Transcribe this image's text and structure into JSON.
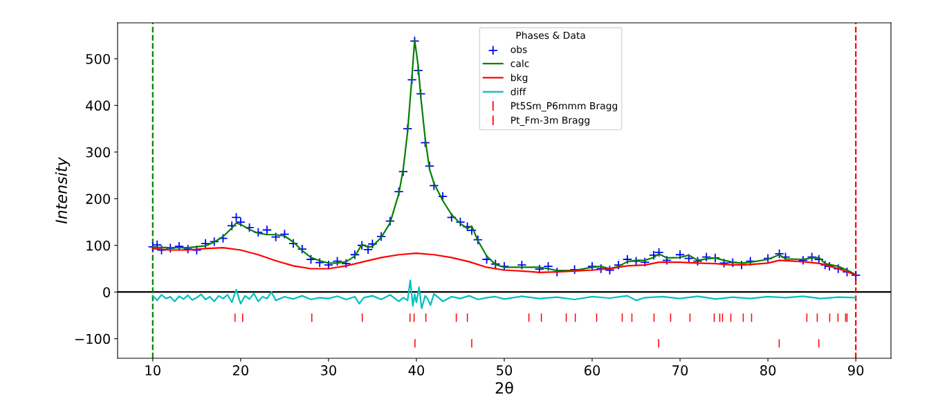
{
  "chart_data": {
    "type": "line",
    "xlabel": "2θ",
    "ylabel": "Intensity",
    "legend_title": "Phases & Data",
    "legend": "top",
    "grid": false,
    "xlim": [
      6,
      94
    ],
    "ylim": [
      -142,
      577
    ],
    "xticks": [
      10,
      20,
      30,
      40,
      50,
      60,
      70,
      80,
      90
    ],
    "yticks": [
      -100,
      0,
      100,
      200,
      300,
      400,
      500
    ],
    "ref_lines": [
      {
        "axis": "y",
        "value": 0,
        "color": "#000000",
        "line_style": "solid"
      },
      {
        "axis": "x",
        "value": 10,
        "color": "#008000",
        "line_style": "dashed"
      },
      {
        "axis": "x",
        "value": 90,
        "color": "#ff0000",
        "line_style": "dashed"
      }
    ],
    "series": [
      {
        "name": "obs",
        "type": "scatter",
        "marker": "cross",
        "color": "#0000ff",
        "x": [
          10,
          10.5,
          11,
          12,
          13,
          14,
          15,
          16,
          17,
          18,
          19,
          19.5,
          20,
          21,
          22,
          23,
          24,
          25,
          26,
          27,
          28,
          29,
          30,
          31,
          32,
          33,
          33.8,
          34.5,
          35,
          36,
          37,
          38,
          38.5,
          39,
          39.5,
          39.8,
          40.2,
          40.5,
          41,
          41.5,
          42,
          43,
          44,
          45,
          45.8,
          46.3,
          47,
          48,
          49,
          50,
          52,
          54,
          55,
          56,
          58,
          60,
          61,
          62,
          63,
          64,
          65,
          66,
          67,
          67.6,
          68.5,
          70,
          71,
          72,
          73,
          74,
          75,
          76,
          77,
          78,
          80,
          81.3,
          82,
          84,
          85,
          85.8,
          86.5,
          87,
          88,
          89,
          90
        ],
        "values": [
          97,
          101,
          90,
          94,
          98,
          92,
          90,
          104,
          108,
          115,
          142,
          160,
          150,
          138,
          128,
          133,
          118,
          124,
          104,
          92,
          70,
          63,
          58,
          66,
          61,
          80,
          100,
          91,
          103,
          119,
          152,
          215,
          258,
          350,
          455,
          538,
          475,
          425,
          320,
          270,
          228,
          205,
          160,
          150,
          140,
          132,
          112,
          70,
          60,
          55,
          58,
          49,
          55,
          43,
          48,
          55,
          50,
          47,
          58,
          70,
          66,
          64,
          79,
          85,
          68,
          80,
          72,
          66,
          75,
          73,
          62,
          63,
          58,
          66,
          72,
          82,
          75,
          68,
          75,
          70,
          58,
          55,
          50,
          43,
          36
        ]
      },
      {
        "name": "calc",
        "color": "#008000",
        "x": [
          10,
          12,
          14,
          16,
          17,
          18,
          19,
          19.5,
          20,
          21,
          22,
          23,
          24,
          25,
          26,
          27,
          28,
          29,
          30,
          31,
          32,
          33,
          33.8,
          34.5,
          35,
          36,
          37,
          38,
          38.5,
          39,
          39.5,
          39.8,
          40.2,
          40.5,
          41,
          41.5,
          42,
          43,
          44,
          45,
          45.8,
          46.3,
          47,
          48,
          49,
          50,
          52,
          54,
          55,
          56,
          58,
          60,
          61,
          62,
          63,
          64,
          65,
          66,
          67,
          67.6,
          68.5,
          70,
          71,
          72,
          73,
          74,
          75,
          76,
          77,
          78,
          80,
          81.3,
          82,
          84,
          85,
          85.8,
          86.5,
          87,
          88,
          89,
          90
        ],
        "values": [
          96,
          95,
          95,
          99,
          107,
          119,
          137,
          148,
          145,
          134,
          126,
          123,
          123,
          120,
          107,
          89,
          74,
          67,
          62,
          62,
          65,
          77,
          102,
          96,
          98,
          117,
          148,
          211,
          263,
          344,
          463,
          540,
          485,
          418,
          329,
          263,
          233,
          196,
          166,
          147,
          136,
          141,
          110,
          77,
          59,
          53,
          53,
          53,
          50,
          46,
          46,
          53,
          55,
          50,
          55,
          65,
          68,
          68,
          74,
          82,
          73,
          74,
          79,
          68,
          71,
          73,
          68,
          64,
          62,
          64,
          70,
          80,
          71,
          70,
          73,
          74,
          61,
          59,
          55,
          47,
          37
        ]
      },
      {
        "name": "bkg",
        "color": "#ff0000",
        "x": [
          10,
          12,
          14,
          16,
          18,
          20,
          22,
          24,
          26,
          28,
          30,
          32,
          34,
          36,
          38,
          40,
          42,
          44,
          46,
          48,
          50,
          52,
          54,
          56,
          58,
          60,
          62,
          64,
          66,
          67.6,
          70,
          72,
          74,
          76,
          78,
          80,
          81.3,
          84,
          86,
          88,
          90
        ],
        "values": [
          93,
          90,
          90,
          93,
          95,
          90,
          80,
          67,
          56,
          50,
          50,
          56,
          65,
          74,
          80,
          83,
          80,
          74,
          65,
          53,
          47,
          45,
          42,
          43,
          45,
          47,
          50,
          56,
          58,
          64,
          64,
          62,
          61,
          58,
          59,
          62,
          68,
          65,
          61,
          50,
          37
        ]
      },
      {
        "name": "diff",
        "color": "#00bfbf",
        "x": [
          10,
          10.5,
          11,
          11.5,
          12,
          12.5,
          13,
          13.5,
          14,
          14.5,
          15,
          15.5,
          16,
          16.5,
          17,
          17.5,
          18,
          18.5,
          19,
          19.5,
          20,
          20.5,
          21,
          21.5,
          22,
          22.5,
          23,
          23.5,
          24,
          25,
          26,
          27,
          28,
          29,
          30,
          31,
          32,
          33,
          33.5,
          34,
          35,
          36,
          37,
          38,
          38.5,
          39,
          39.3,
          39.6,
          39.8,
          40,
          40.3,
          40.6,
          41,
          41.3,
          41.6,
          42,
          43,
          44,
          45,
          46,
          47,
          48,
          49,
          50,
          52,
          54,
          56,
          58,
          60,
          62,
          64,
          65,
          66,
          68,
          70,
          72,
          74,
          76,
          78,
          80,
          82,
          84,
          86,
          88,
          90
        ],
        "values": [
          -8,
          -18,
          -6,
          -14,
          -10,
          -20,
          -9,
          -15,
          -7,
          -17,
          -12,
          -5,
          -16,
          -10,
          -20,
          -8,
          -14,
          -6,
          -22,
          5,
          -25,
          -8,
          -15,
          -3,
          -20,
          -10,
          -14,
          0,
          -18,
          -10,
          -15,
          -8,
          -16,
          -12,
          -14,
          -9,
          -16,
          -10,
          -25,
          -12,
          -8,
          -16,
          -6,
          -20,
          -12,
          -18,
          25,
          -30,
          -5,
          -22,
          10,
          -35,
          -8,
          -15,
          -28,
          -4,
          -20,
          -10,
          -14,
          -8,
          -16,
          -12,
          -10,
          -15,
          -9,
          -14,
          -11,
          -16,
          -10,
          -13,
          -8,
          -18,
          -12,
          -10,
          -14,
          -9,
          -15,
          -11,
          -14,
          -10,
          -12,
          -9,
          -14,
          -11,
          -12
        ]
      },
      {
        "name": "Pt5Sm_P6mmm Bragg",
        "type": "bar",
        "base": [
          -64,
          -64,
          -64,
          -64,
          -64,
          -64,
          -64,
          -64,
          -64,
          -64,
          -64,
          -64,
          -64,
          -64,
          -64,
          -64,
          -64,
          -64,
          -64,
          -64,
          -64,
          -64,
          -64,
          -64,
          -64,
          -64,
          -64,
          -64,
          -64,
          -64,
          -64
        ],
        "color": "#ff0000",
        "x": [
          19.36,
          20.23,
          28.1,
          33.84,
          39.27,
          39.74,
          41.08,
          44.54,
          45.8,
          52.8,
          54.22,
          57.05,
          58.08,
          60.51,
          63.42,
          64.52,
          67.04,
          68.93,
          71.13,
          73.89,
          74.52,
          74.83,
          75.78,
          77.19,
          78.14,
          84.43,
          85.61,
          87.03,
          87.97,
          88.84,
          89.0
        ],
        "values": [
          18,
          18,
          18,
          18,
          18,
          18,
          18,
          18,
          18,
          18,
          18,
          18,
          18,
          18,
          18,
          18,
          18,
          18,
          18,
          18,
          18,
          18,
          18,
          18,
          18,
          18,
          18,
          18,
          18,
          18,
          18
        ]
      },
      {
        "name": "Pt_Fm-3m Bragg",
        "type": "bar",
        "base": [
          -119,
          -119,
          -119,
          -119,
          -119
        ],
        "color": "#ff0000",
        "x": [
          39.84,
          46.3,
          67.57,
          81.28,
          85.79
        ],
        "values": [
          18,
          18,
          18,
          18,
          18
        ]
      }
    ]
  }
}
